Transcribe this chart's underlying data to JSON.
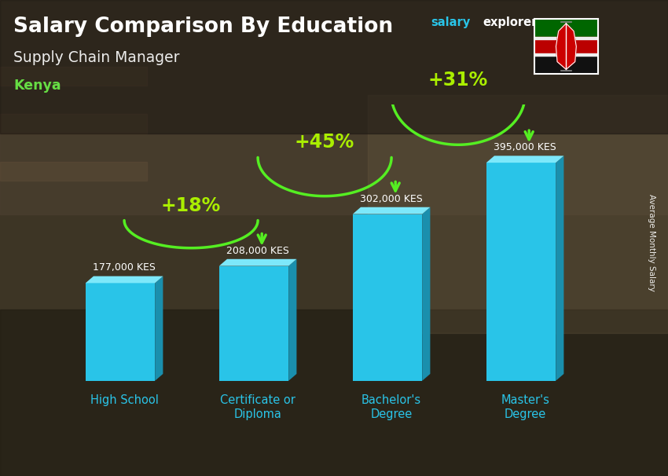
{
  "title_main": "Salary Comparison By Education",
  "subtitle": "Supply Chain Manager",
  "country": "Kenya",
  "categories": [
    "High School",
    "Certificate or\nDiploma",
    "Bachelor's\nDegree",
    "Master's\nDegree"
  ],
  "values": [
    177000,
    208000,
    302000,
    395000
  ],
  "value_labels": [
    "177,000 KES",
    "208,000 KES",
    "302,000 KES",
    "395,000 KES"
  ],
  "pct_labels": [
    "+18%",
    "+45%",
    "+31%"
  ],
  "bar_color_main": "#29C4E8",
  "bar_color_light": "#7DE8FA",
  "bar_color_dark": "#1A8FAD",
  "arrow_color": "#55EE22",
  "pct_color": "#AAEE00",
  "text_white": "#FFFFFF",
  "text_cyan": "#29C4E8",
  "text_green": "#66DD44",
  "salary_color": "#29C4E8",
  "ylabel": "Average Monthly Salary",
  "ylim": [
    0,
    500000
  ],
  "fig_width": 8.5,
  "fig_height": 6.06,
  "dpi": 100
}
